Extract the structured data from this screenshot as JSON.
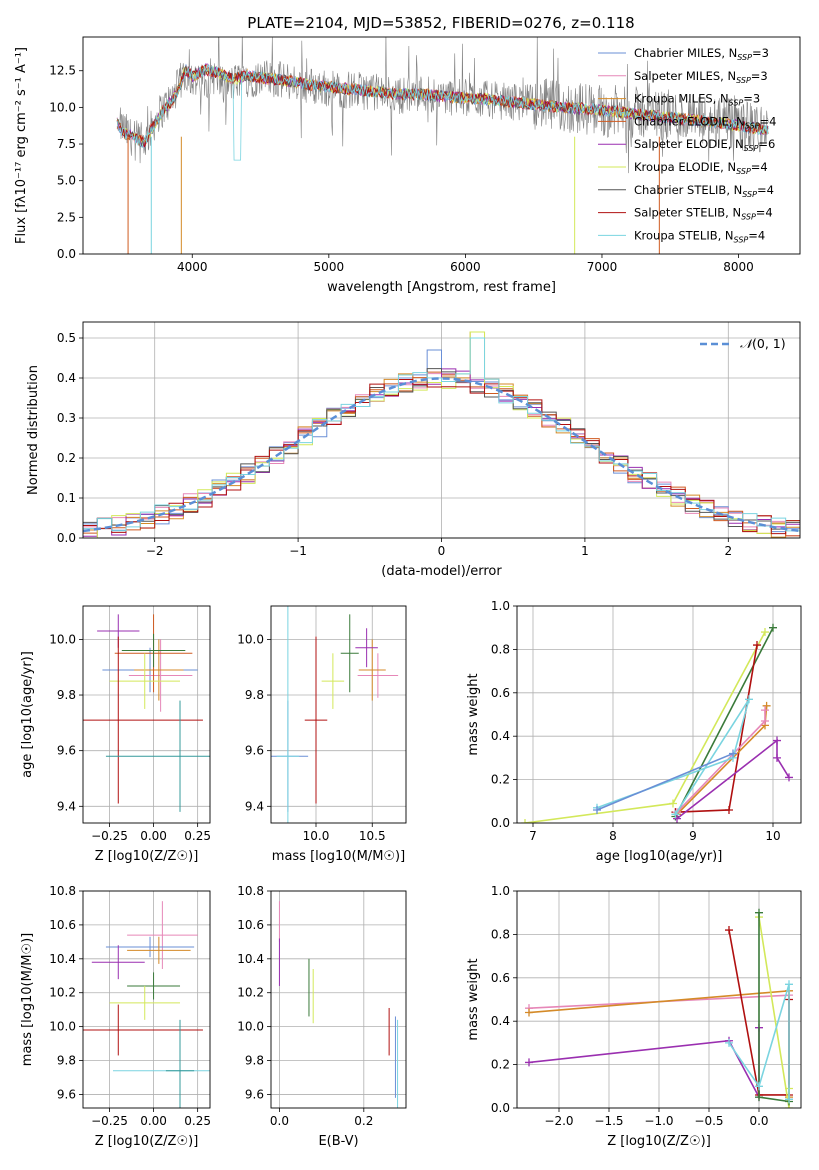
{
  "figure": {
    "title": "PLATE=2104, MJD=53852, FIBERID=0276, z=0.118"
  },
  "series_colors": [
    "#6a8fd6",
    "#e687b8",
    "#d48a28",
    "#cf5a20",
    "#9a2fb0",
    "#d3e85a",
    "#555555",
    "#b01010",
    "#7ad4e0"
  ],
  "chart_data": [
    {
      "id": "spectrum",
      "type": "line",
      "xlabel": "wavelength [Angstrom, rest frame]",
      "ylabel": "Flux [fλ10⁻¹⁷ erg cm⁻² s⁻¹ A⁻¹]",
      "xlim": [
        3200,
        8450
      ],
      "ylim": [
        0,
        14.8
      ],
      "grid": false,
      "xticks": [
        4000,
        5000,
        6000,
        7000,
        8000
      ],
      "xtick_labels": [
        "4000",
        "5000",
        "6000",
        "7000",
        "8000"
      ],
      "yticks": [
        0,
        2.5,
        5,
        7.5,
        10,
        12.5
      ],
      "ytick_labels": [
        "0.0",
        "2.5",
        "5.0",
        "7.5",
        "10.0",
        "12.5"
      ],
      "legend_position": "top-right",
      "legend": [
        "Chabrier MILES, N_SSP=3",
        "Salpeter MILES, N_SSP=3",
        "Kroupa MILES, N_SSP=3",
        "Chabrier ELODIE, N_SSP=4",
        "Salpeter ELODIE, N_SSP=6",
        "Kroupa ELODIE, N_SSP=4",
        "Chabrier STELIB, N_SSP=4",
        "Salpeter STELIB, N_SSP=4",
        "Kroupa STELIB, N_SSP=4"
      ],
      "legend_parts": [
        {
          "prefix": "Chabrier MILES, N",
          "sub": "SSP",
          "suffix": "=3"
        },
        {
          "prefix": "Salpeter MILES, N",
          "sub": "SSP",
          "suffix": "=3"
        },
        {
          "prefix": "Kroupa MILES, N",
          "sub": "SSP",
          "suffix": "=3"
        },
        {
          "prefix": "Chabrier ELODIE, N",
          "sub": "SSP",
          "suffix": "=4"
        },
        {
          "prefix": "Salpeter ELODIE, N",
          "sub": "SSP",
          "suffix": "=6"
        },
        {
          "prefix": "Kroupa ELODIE, N",
          "sub": "SSP",
          "suffix": "=4"
        },
        {
          "prefix": "Chabrier STELIB, N",
          "sub": "SSP",
          "suffix": "=4"
        },
        {
          "prefix": "Salpeter STELIB, N",
          "sub": "SSP",
          "suffix": "=4"
        },
        {
          "prefix": "Kroupa STELIB, N",
          "sub": "SSP",
          "suffix": "=4"
        }
      ],
      "data_series": {
        "name": "data",
        "color": "#808080",
        "x": [
          3480,
          3550,
          3650,
          3750,
          3850,
          3950,
          4050,
          4150,
          4250,
          4350,
          4500,
          4700,
          4900,
          5100,
          5300,
          5500,
          5700,
          5900,
          6100,
          6300,
          6500,
          6700,
          6900,
          7100,
          7300,
          7500,
          7700,
          7900,
          8100,
          8200
        ],
        "y": [
          8.7,
          8.0,
          7.6,
          9.5,
          10.6,
          12.4,
          11.6,
          12.2,
          11.4,
          11.9,
          12.0,
          11.8,
          11.4,
          11.2,
          11.1,
          10.8,
          11.0,
          10.7,
          10.6,
          10.4,
          10.3,
          10.0,
          9.9,
          9.7,
          9.6,
          9.4,
          9.1,
          8.9,
          8.6,
          8.4
        ]
      },
      "model_series": {
        "x": [
          3450,
          3500,
          3550,
          3600,
          3650,
          3700,
          3750,
          3800,
          3850,
          3900,
          3950,
          4000,
          4100,
          4200,
          4300,
          4400,
          4500,
          4700,
          4900,
          5100,
          5300,
          5500,
          5700,
          5900,
          6100,
          6300,
          6500,
          6700,
          6900,
          7100,
          7300,
          7500,
          7700,
          7900,
          8100,
          8200
        ],
        "y": [
          8.9,
          8.2,
          8.1,
          7.8,
          7.6,
          8.5,
          9.2,
          10.0,
          10.4,
          11.2,
          12.6,
          12.1,
          12.6,
          12.3,
          11.9,
          12.2,
          12.0,
          11.8,
          11.5,
          11.3,
          11.1,
          10.9,
          10.9,
          10.7,
          10.6,
          10.4,
          10.2,
          10.0,
          9.9,
          9.7,
          9.5,
          9.3,
          9.1,
          8.9,
          8.6,
          8.5
        ]
      }
    },
    {
      "id": "residuals",
      "type": "line",
      "xlabel": "(data-model)/error",
      "ylabel": "Normed distribution",
      "xlim": [
        -2.5,
        2.5
      ],
      "ylim": [
        0,
        0.54
      ],
      "grid": true,
      "xticks": [
        -2,
        -1,
        0,
        1,
        2
      ],
      "xtick_labels": [
        "−2",
        "−1",
        "0",
        "1",
        "2"
      ],
      "yticks": [
        0,
        0.1,
        0.2,
        0.3,
        0.4,
        0.5
      ],
      "ytick_labels": [
        "0.0",
        "0.1",
        "0.2",
        "0.3",
        "0.4",
        "0.5"
      ],
      "legend": [
        "N(0,1)"
      ],
      "legend_position": "top-right",
      "legend_glyph": "𝒩",
      "legend_rest": "(0, 1)",
      "gaussian": {
        "mean": 0,
        "sigma": 1,
        "color": "#5b8fd6"
      },
      "bin_width": 0.1,
      "bin_start": -2.5
    },
    {
      "id": "age_vs_Z",
      "type": "scatter",
      "xlabel": "Z [log10(Z/Z☉)]",
      "ylabel": "age  [log10(age/yr)]",
      "xlim": [
        -0.4,
        0.32
      ],
      "ylim": [
        9.34,
        10.12
      ],
      "grid": true,
      "xticks": [
        -0.25,
        0,
        0.25
      ],
      "xtick_labels": [
        "−0.25",
        "0.00",
        "0.25"
      ],
      "yticks": [
        9.4,
        9.6,
        9.8,
        10.0
      ],
      "ytick_labels": [
        "9.4",
        "9.6",
        "9.8",
        "10.0"
      ],
      "points": [
        {
          "x": -0.02,
          "y": 9.89,
          "ex": 0.27,
          "ey": 0.08,
          "color": "#6a8fd6"
        },
        {
          "x": 0.04,
          "y": 9.87,
          "ex": 0.18,
          "ey": 0.13,
          "color": "#e687b8"
        },
        {
          "x": 0.03,
          "y": 9.89,
          "ex": 0.14,
          "ey": 0.11,
          "color": "#d48a28"
        },
        {
          "x": 0.0,
          "y": 9.95,
          "ex": 0.22,
          "ey": 0.14,
          "color": "#cf5a20"
        },
        {
          "x": -0.2,
          "y": 10.03,
          "ex": 0.12,
          "ey": 0.06,
          "color": "#9a2fb0"
        },
        {
          "x": -0.05,
          "y": 9.85,
          "ex": 0.2,
          "ey": 0.1,
          "color": "#d3e85a"
        },
        {
          "x": 0.0,
          "y": 9.96,
          "ex": 0.18,
          "ey": 0.06,
          "color": "#3a7a3a"
        },
        {
          "x": -0.2,
          "y": 9.71,
          "ex": 0.48,
          "ey": 0.3,
          "color": "#b01010"
        },
        {
          "x": 0.15,
          "y": 9.58,
          "ex": 0.42,
          "ey": 0.2,
          "color": "#33999a"
        }
      ]
    },
    {
      "id": "age_vs_mass",
      "type": "scatter",
      "xlabel": "mass [log10(M/M☉)]",
      "ylabel": "",
      "xlim": [
        9.6,
        10.8
      ],
      "ylim": [
        9.34,
        10.12
      ],
      "grid": true,
      "xticks": [
        10.0,
        10.5
      ],
      "xtick_labels": [
        "10.0",
        "10.5"
      ],
      "yticks": [
        9.4,
        9.6,
        9.8,
        10.0
      ],
      "ytick_labels": [
        "9.4",
        "9.6",
        "9.8",
        "10.0"
      ],
      "points": [
        {
          "x": 10.55,
          "y": 9.87,
          "ex": 0.18,
          "ey": 0.08,
          "color": "#e687b8"
        },
        {
          "x": 10.5,
          "y": 9.89,
          "ex": 0.12,
          "ey": 0.11,
          "color": "#d48a28"
        },
        {
          "x": 10.45,
          "y": 9.97,
          "ex": 0.1,
          "ey": 0.07,
          "color": "#9a2fb0"
        },
        {
          "x": 10.15,
          "y": 9.85,
          "ex": 0.1,
          "ey": 0.1,
          "color": "#d3e85a"
        },
        {
          "x": 10.3,
          "y": 9.95,
          "ex": 0.08,
          "ey": 0.14,
          "color": "#3a7a3a"
        },
        {
          "x": 10.0,
          "y": 9.71,
          "ex": 0.1,
          "ey": 0.3,
          "color": "#b01010"
        },
        {
          "x": 9.75,
          "y": 9.58,
          "ex": 0.18,
          "ey": 0.2,
          "color": "#6a8fd6"
        },
        {
          "x": 9.75,
          "y": 9.58,
          "ex": 0.1,
          "ey": 0.54,
          "color": "#7ad4e0"
        }
      ]
    },
    {
      "id": "massweight_vs_age",
      "type": "line",
      "xlabel": "age  [log10(age/yr)]",
      "ylabel": "mass weight",
      "xlim": [
        6.8,
        10.35
      ],
      "ylim": [
        0,
        1.0
      ],
      "grid": true,
      "xticks": [
        7,
        8,
        9,
        10
      ],
      "xtick_labels": [
        "7",
        "8",
        "9",
        "10"
      ],
      "yticks": [
        0,
        0.2,
        0.4,
        0.6,
        0.8,
        1.0
      ],
      "ytick_labels": [
        "0.0",
        "0.2",
        "0.4",
        "0.6",
        "0.8",
        "1.0"
      ],
      "series": [
        {
          "color": "#d3e85a",
          "points": [
            [
              6.9,
              0.0
            ],
            [
              8.75,
              0.09
            ],
            [
              9.9,
              0.88
            ]
          ]
        },
        {
          "color": "#3a7a3a",
          "points": [
            [
              8.78,
              0.03
            ],
            [
              10.0,
              0.9
            ]
          ]
        },
        {
          "color": "#b01010",
          "points": [
            [
              8.78,
              0.05
            ],
            [
              9.45,
              0.06
            ],
            [
              9.8,
              0.82
            ]
          ]
        },
        {
          "color": "#d48a28",
          "points": [
            [
              8.8,
              0.04
            ],
            [
              9.9,
              0.45
            ],
            [
              9.92,
              0.54
            ]
          ]
        },
        {
          "color": "#e687b8",
          "points": [
            [
              8.8,
              0.05
            ],
            [
              9.9,
              0.47
            ],
            [
              9.9,
              0.52
            ]
          ]
        },
        {
          "color": "#9a2fb0",
          "points": [
            [
              8.8,
              0.02
            ],
            [
              10.05,
              0.38
            ],
            [
              10.05,
              0.3
            ],
            [
              10.2,
              0.21
            ]
          ]
        },
        {
          "color": "#7ad4e0",
          "points": [
            [
              7.8,
              0.07
            ],
            [
              9.5,
              0.3
            ],
            [
              9.7,
              0.57
            ],
            [
              8.78,
              0.04
            ]
          ]
        },
        {
          "color": "#6a8fd6",
          "points": [
            [
              7.8,
              0.06
            ],
            [
              9.5,
              0.32
            ]
          ]
        }
      ]
    },
    {
      "id": "mass_vs_Z",
      "type": "scatter",
      "xlabel": "Z [log10(Z/Z☉)]",
      "ylabel": "mass [log10(M/M☉)]",
      "xlim": [
        -0.4,
        0.32
      ],
      "ylim": [
        9.52,
        10.8
      ],
      "grid": true,
      "xticks": [
        -0.25,
        0,
        0.25
      ],
      "xtick_labels": [
        "−0.25",
        "0.00",
        "0.25"
      ],
      "yticks": [
        9.6,
        9.8,
        10.0,
        10.2,
        10.4,
        10.6,
        10.8
      ],
      "ytick_labels": [
        "9.6",
        "9.8",
        "10.0",
        "10.2",
        "10.4",
        "10.6",
        "10.8"
      ],
      "points": [
        {
          "x": 0.05,
          "y": 10.54,
          "ex": 0.2,
          "ey": 0.2,
          "color": "#e687b8"
        },
        {
          "x": -0.02,
          "y": 10.47,
          "ex": 0.25,
          "ey": 0.06,
          "color": "#6a8fd6"
        },
        {
          "x": 0.03,
          "y": 10.45,
          "ex": 0.18,
          "ey": 0.08,
          "color": "#d48a28"
        },
        {
          "x": -0.2,
          "y": 10.38,
          "ex": 0.15,
          "ey": 0.1,
          "color": "#9a2fb0"
        },
        {
          "x": 0.0,
          "y": 10.24,
          "ex": 0.15,
          "ey": 0.08,
          "color": "#3a7a3a"
        },
        {
          "x": -0.05,
          "y": 10.14,
          "ex": 0.2,
          "ey": 0.1,
          "color": "#d3e85a"
        },
        {
          "x": -0.2,
          "y": 9.98,
          "ex": 0.48,
          "ey": 0.15,
          "color": "#b01010"
        },
        {
          "x": 0.15,
          "y": 9.74,
          "ex": 0.38,
          "ey": 0.2,
          "color": "#7ad4e0"
        },
        {
          "x": 0.15,
          "y": 9.74,
          "ex": 0.08,
          "ey": 0.3,
          "color": "#33999a"
        }
      ]
    },
    {
      "id": "mass_vs_EBV",
      "type": "scatter",
      "xlabel": "E(B-V)",
      "ylabel": "",
      "xlim": [
        -0.02,
        0.3
      ],
      "ylim": [
        9.52,
        10.8
      ],
      "grid": true,
      "xticks": [
        0.0,
        0.2
      ],
      "xtick_labels": [
        "0.0",
        "0.2"
      ],
      "yticks": [
        9.6,
        9.8,
        10.0,
        10.2,
        10.4,
        10.6,
        10.8
      ],
      "ytick_labels": [
        "9.6",
        "9.8",
        "10.0",
        "10.2",
        "10.4",
        "10.6",
        "10.8"
      ],
      "points": [
        {
          "x": 0.0,
          "y": 10.62,
          "ex": 0,
          "ey": 0.12,
          "color": "#e687b8"
        },
        {
          "x": 0.0,
          "y": 10.38,
          "ex": 0,
          "ey": 0.14,
          "color": "#9a2fb0"
        },
        {
          "x": 0.07,
          "y": 10.23,
          "ex": 0,
          "ey": 0.17,
          "color": "#3a7a3a"
        },
        {
          "x": 0.08,
          "y": 10.18,
          "ex": 0,
          "ey": 0.16,
          "color": "#d3e85a"
        },
        {
          "x": 0.26,
          "y": 9.97,
          "ex": 0,
          "ey": 0.14,
          "color": "#b01010"
        },
        {
          "x": 0.275,
          "y": 9.82,
          "ex": 0,
          "ey": 0.24,
          "color": "#6a8fd6"
        },
        {
          "x": 0.28,
          "y": 9.74,
          "ex": 0,
          "ey": 0.3,
          "color": "#7ad4e0"
        }
      ]
    },
    {
      "id": "massweight_vs_Z",
      "type": "line",
      "xlabel": "Z [log10(Z/Z☉)]",
      "ylabel": "mass weight",
      "xlim": [
        -2.42,
        0.42
      ],
      "ylim": [
        0,
        1.0
      ],
      "grid": true,
      "xticks": [
        -2.0,
        -1.5,
        -1.0,
        -0.5,
        0.0
      ],
      "xtick_labels": [
        "−2.0",
        "−1.5",
        "−1.0",
        "−0.5",
        "0.0"
      ],
      "yticks": [
        0,
        0.2,
        0.4,
        0.6,
        0.8,
        1.0
      ],
      "ytick_labels": [
        "0.0",
        "0.2",
        "0.4",
        "0.6",
        "0.8",
        "1.0"
      ],
      "series": [
        {
          "color": "#e687b8",
          "points": [
            [
              -2.3,
              0.46
            ],
            [
              0.3,
              0.52
            ],
            [
              0.3,
              0.04
            ]
          ]
        },
        {
          "color": "#d48a28",
          "points": [
            [
              -2.3,
              0.44
            ],
            [
              0.3,
              0.54
            ],
            [
              0.3,
              0.05
            ]
          ]
        },
        {
          "color": "#9a2fb0",
          "points": [
            [
              -2.3,
              0.21
            ],
            [
              -0.3,
              0.31
            ],
            [
              0.0,
              0.05
            ],
            [
              0.0,
              0.37
            ]
          ]
        },
        {
          "color": "#b01010",
          "points": [
            [
              -0.3,
              0.82
            ],
            [
              0.0,
              0.06
            ],
            [
              0.3,
              0.06
            ],
            [
              0.3,
              0.5
            ]
          ]
        },
        {
          "color": "#d3e85a",
          "points": [
            [
              0.0,
              0.88
            ],
            [
              0.3,
              0.0
            ],
            [
              0.3,
              0.09
            ]
          ]
        },
        {
          "color": "#3a7a3a",
          "points": [
            [
              0.0,
              0.9
            ],
            [
              0.0,
              0.05
            ],
            [
              0.3,
              0.03
            ]
          ]
        },
        {
          "color": "#7ad4e0",
          "points": [
            [
              -0.3,
              0.3
            ],
            [
              0.0,
              0.1
            ],
            [
              0.3,
              0.57
            ],
            [
              0.3,
              0.04
            ]
          ]
        }
      ]
    }
  ]
}
